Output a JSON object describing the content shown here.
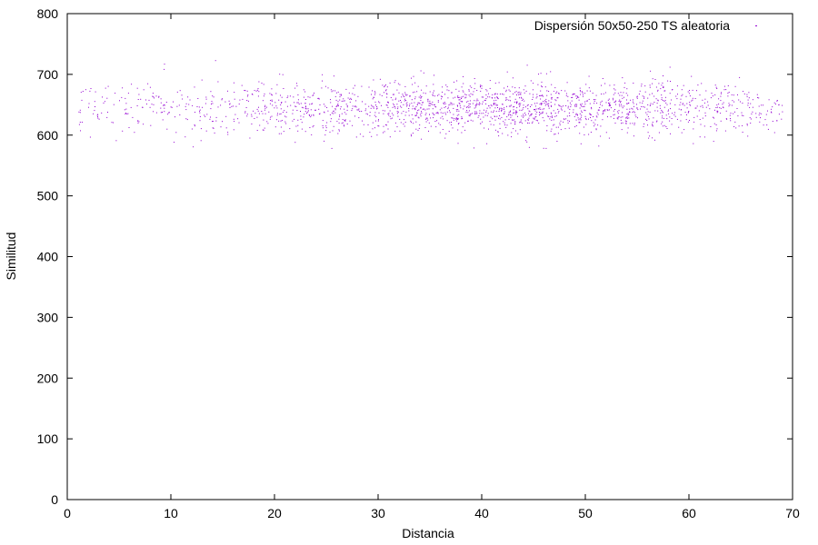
{
  "chart_data": {
    "type": "scatter",
    "legend": "Dispersión 50x50-250 TS aleatoria",
    "legend_position": "top-right",
    "xlabel": "Distancia",
    "ylabel": "Similitud",
    "xlim": [
      0,
      70
    ],
    "ylim": [
      0,
      800
    ],
    "xticks": [
      "0",
      "10",
      "20",
      "30",
      "40",
      "50",
      "60",
      "70"
    ],
    "yticks": [
      "0",
      "100",
      "200",
      "300",
      "400",
      "500",
      "600",
      "700",
      "800"
    ],
    "grid": false,
    "series_color": "#9400d3",
    "cloud": {
      "n_points": 2000,
      "x_range": [
        1,
        69
      ],
      "x_center": 42,
      "x_spread": 14,
      "y_mean": 645,
      "y_spread": 22,
      "y_range": [
        575,
        725
      ]
    }
  }
}
